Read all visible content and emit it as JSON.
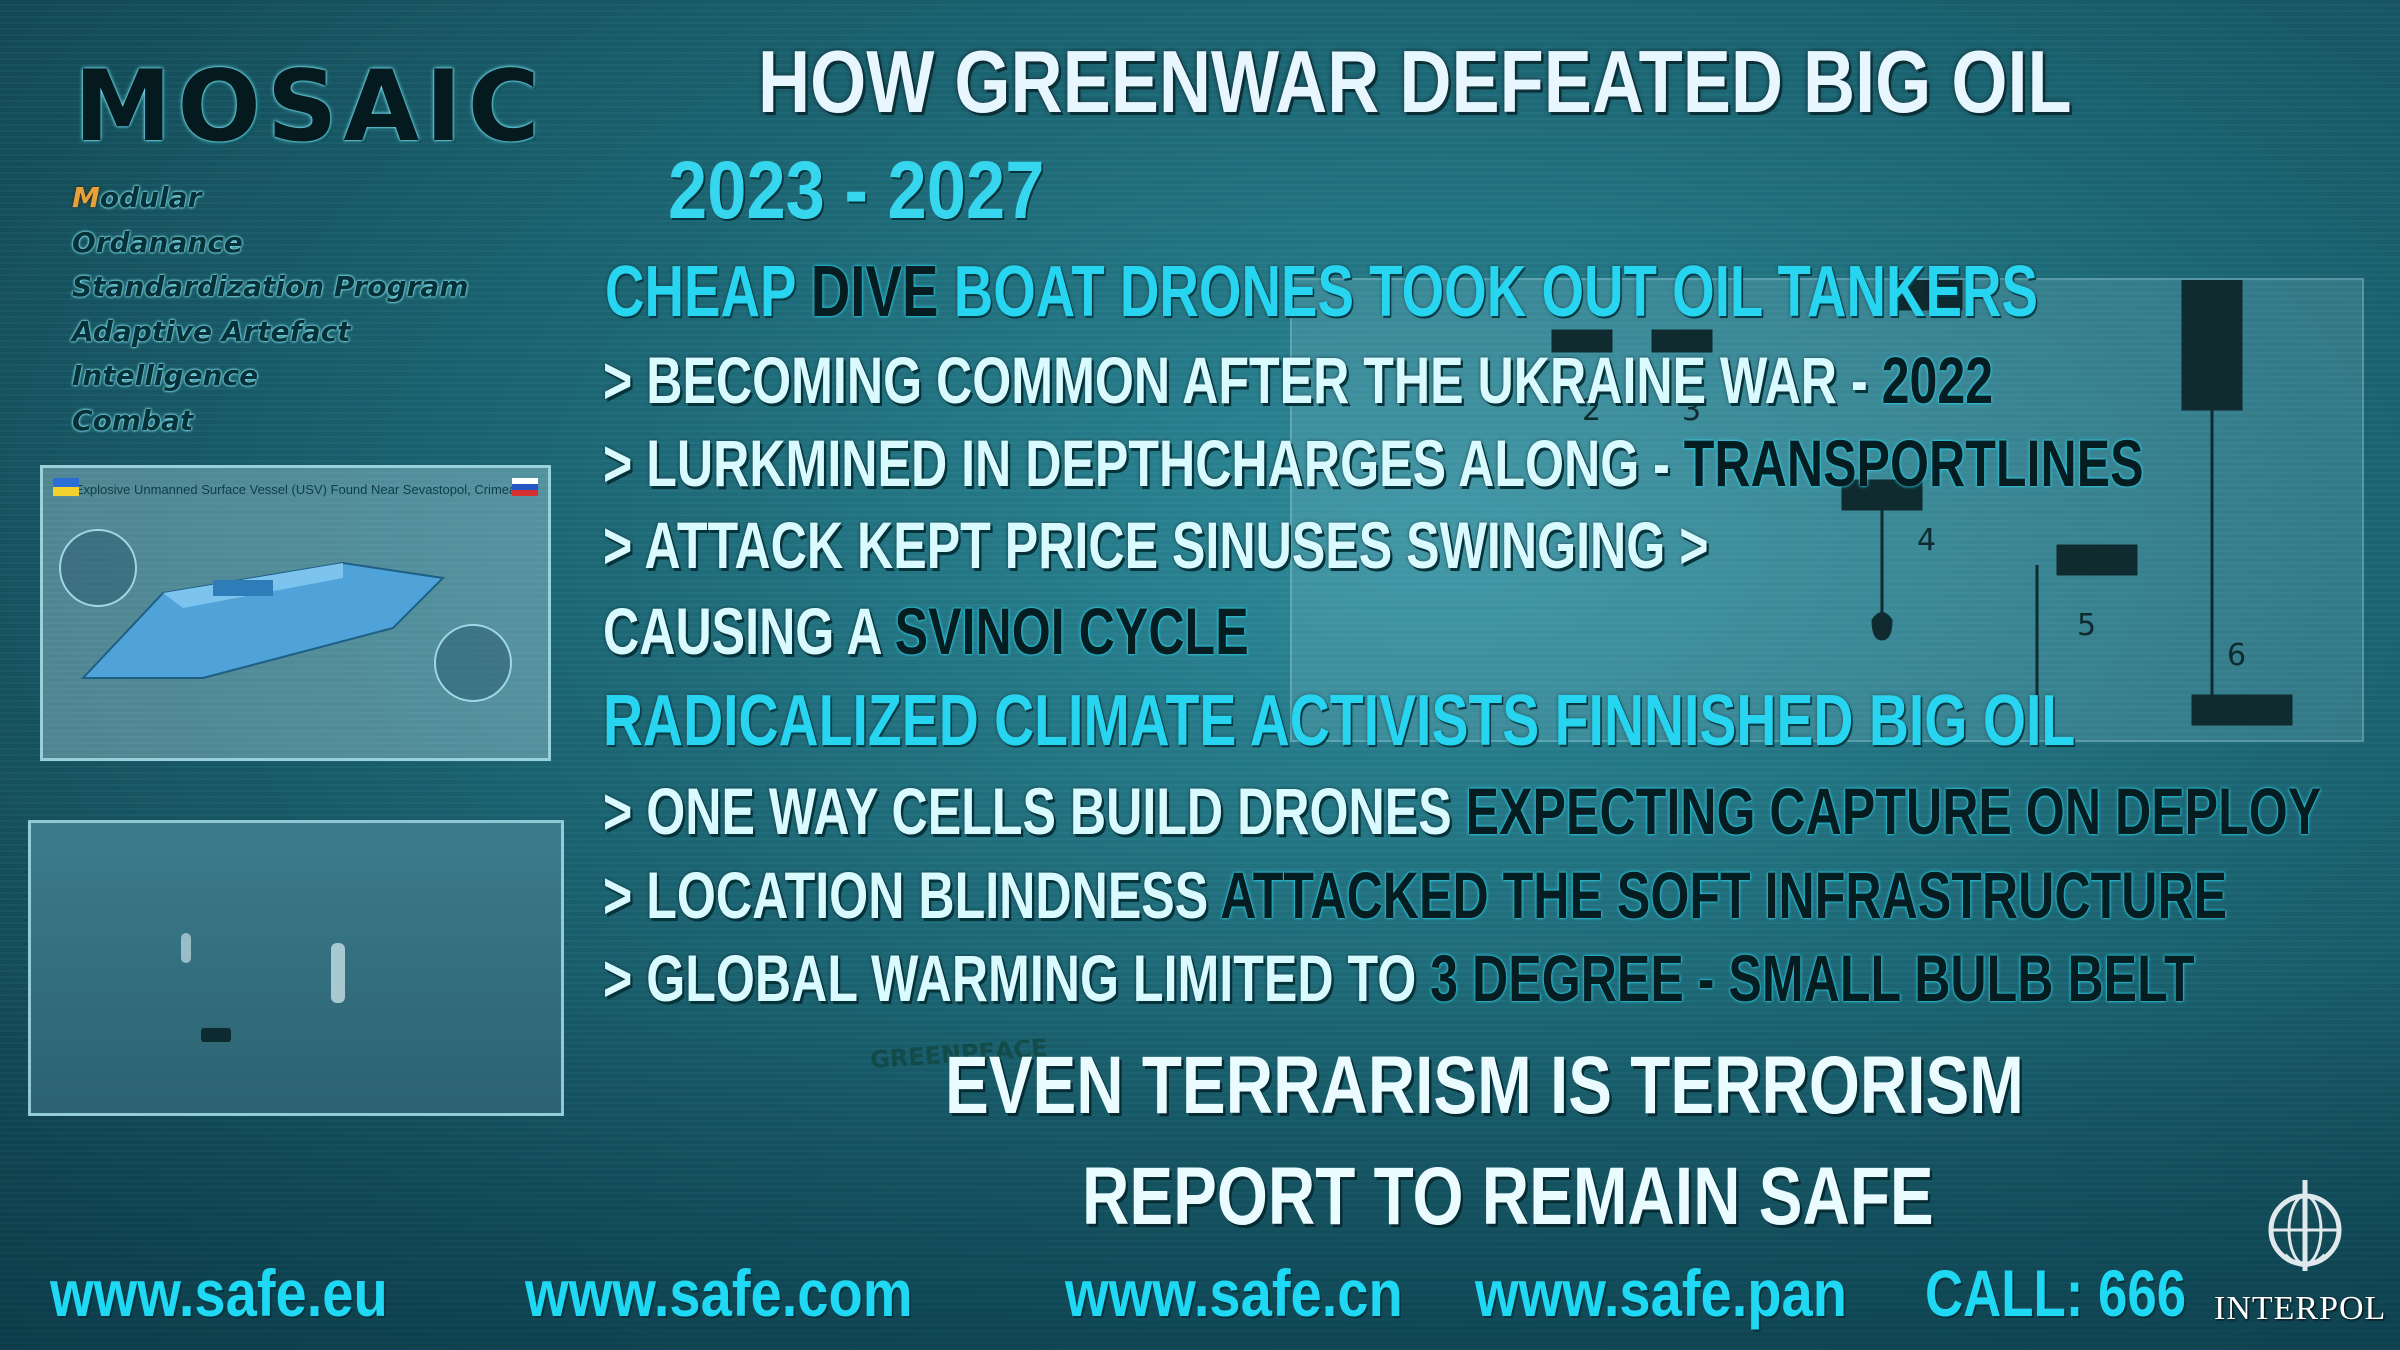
{
  "logo": {
    "name": "MOSAIC",
    "acronym": [
      {
        "initial": "M",
        "rest": "odular"
      },
      {
        "initial": "O",
        "rest": "rdanance"
      },
      {
        "initial": "S",
        "rest": "tandardization Program"
      },
      {
        "initial": "A",
        "rest": "daptive Artefact"
      },
      {
        "initial": "I",
        "rest": "ntelligence"
      },
      {
        "initial": "C",
        "rest": "ombat"
      }
    ]
  },
  "title": "HOW GREENWAR DEFEATED BIG OIL",
  "years": "2023 - 2027",
  "section1": {
    "headline": {
      "part1": "CHEAP ",
      "part2": "DIVE",
      "part3": " BOAT DRONES TOOK OUT OIL TANKERS"
    },
    "bullets": [
      {
        "text": "> BECOMING COMMON AFTER THE UKRAINE WAR - ",
        "highlight": "2022"
      },
      {
        "text": "> LURKMINED IN DEPTHCHARGES ALONG - ",
        "highlight": "TRANSPORTLINES"
      },
      {
        "text": "> ATTACK KEPT PRICE SINUSES SWINGING >",
        "highlight": ""
      },
      {
        "text": " CAUSING A ",
        "highlight": "SVINOI CYCLE"
      }
    ]
  },
  "section2": {
    "headline": "RADICALIZED CLIMATE ACTIVISTS FINNISHED BIG OIL",
    "bullets": [
      {
        "text": "> ONE WAY CELLS BUILD DRONES ",
        "highlight": "EXPECTING CAPTURE ON DEPLOY"
      },
      {
        "text": "> LOCATION BLINDNESS ",
        "highlight": "ATTACKED THE SOFT INFRASTRUCTURE"
      },
      {
        "text": "> GLOBAL WARMING LIMITED  TO ",
        "highlight": "3 DEGREE  - SMALL BULB BELT"
      }
    ]
  },
  "slogans": [
    "EVEN TERRARISM IS TERRORISM",
    "REPORT TO REMAIN SAFE"
  ],
  "footer": {
    "links": [
      "www.safe.eu",
      "www.safe.com",
      "www.safe.cn",
      "www.safe.pan"
    ],
    "call": "CALL: 666"
  },
  "thumbnail_title": "Explosive Unmanned Surface Vessel (USV) Found Near Sevastopol, Crimea",
  "diagram_labels": [
    "2",
    "3",
    "4",
    "5",
    "6"
  ],
  "interpol": "INTERPOL",
  "watermark": "GREENPEACE",
  "colors": {
    "accent_cyan": "#28d5f0",
    "title_white": "#e8f7ff",
    "dark_text": "#051c21",
    "acronym_initial": "#e8a23c"
  }
}
